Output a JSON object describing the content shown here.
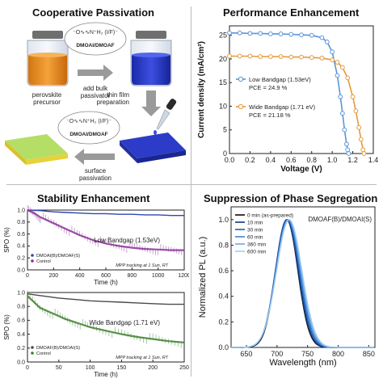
{
  "figure": {
    "panel_a": {
      "title": "Cooperative Passivation",
      "molecule_label_top": "DMOAI/DMOAF",
      "molecule_label_bottom": "DMOAI/DMOAF",
      "precursor_label_line1": "perovskite",
      "precursor_label_line2": "precursor",
      "step1_line1": "add bulk",
      "step1_line2": "passivator",
      "step2_line1": "thin film",
      "step2_line2": "preparation",
      "step3_line1": "surface",
      "step3_line2": "passivation",
      "colors": {
        "orange": "#e2891a",
        "blue": "#2a36c4",
        "green": "#a8d45a",
        "gray_arrow": "#9a9a9a"
      }
    },
    "panel_b": {
      "title": "Performance Enhancement"
    },
    "panel_c": {
      "title": "Stability Enhancement"
    },
    "panel_d": {
      "title": "Suppression of Phase Segregation"
    }
  },
  "chart_data": [
    {
      "id": "jv",
      "type": "line",
      "xlabel": "Voltage (V)",
      "ylabel": "Current density (mA/cm²)",
      "xlim": [
        0,
        1.4
      ],
      "ylim": [
        0,
        27
      ],
      "xticks": [
        "0.0",
        "0.2",
        "0.4",
        "0.6",
        "0.8",
        "1.0",
        "1.2",
        "1.4"
      ],
      "yticks": [
        "0",
        "5",
        "10",
        "15",
        "20",
        "25"
      ],
      "legend_position": "center-left",
      "series": [
        {
          "name": "Low Bandgap (1.53eV)",
          "pce": "PCE = 24.9 %",
          "color": "#5a95d8",
          "x": [
            0,
            0.1,
            0.2,
            0.3,
            0.4,
            0.5,
            0.6,
            0.7,
            0.8,
            0.9,
            0.95,
            1.0,
            1.05,
            1.08,
            1.1,
            1.12,
            1.14,
            1.15,
            1.16
          ],
          "y": [
            25.5,
            25.5,
            25.4,
            25.4,
            25.3,
            25.3,
            25.2,
            25.1,
            25.0,
            24.5,
            23.6,
            21.5,
            16.5,
            12.0,
            8.5,
            5.0,
            2.0,
            0.8,
            0
          ]
        },
        {
          "name": "Wide Bandgap (1.71 eV)",
          "pce": "PCE = 21.18 %",
          "color": "#e39a3d",
          "x": [
            0,
            0.1,
            0.2,
            0.3,
            0.4,
            0.5,
            0.6,
            0.7,
            0.8,
            0.9,
            1.0,
            1.05,
            1.1,
            1.15,
            1.2,
            1.23,
            1.26,
            1.28,
            1.3,
            1.31
          ],
          "y": [
            20.6,
            20.6,
            20.6,
            20.5,
            20.5,
            20.5,
            20.4,
            20.4,
            20.3,
            20.2,
            19.8,
            19.3,
            18.2,
            16.0,
            12.0,
            9.0,
            5.5,
            3.0,
            0.8,
            0
          ]
        }
      ]
    },
    {
      "id": "stab_low",
      "type": "line",
      "xlabel": "Time (h)",
      "ylabel": "SPO (%)",
      "xlim": [
        0,
        1200
      ],
      "ylim": [
        0,
        1.0
      ],
      "xticks": [
        "0",
        "200",
        "400",
        "600",
        "800",
        "1000",
        "1200"
      ],
      "yticks": [
        "0.0",
        "0.2",
        "0.4",
        "0.6",
        "0.8",
        "1.0"
      ],
      "annotation": "Low Bandgap (1.53eV)",
      "note": "MPP tracking at 1 Sun, RT",
      "series": [
        {
          "name": "DMOAI(B)/DMOAF(S)",
          "color": "#2d47b5",
          "x": [
            0,
            100,
            200,
            300,
            400,
            500,
            600,
            700,
            800,
            900,
            1000,
            1100,
            1200
          ],
          "y": [
            1.0,
            0.99,
            0.97,
            0.96,
            0.95,
            0.94,
            0.94,
            0.93,
            0.93,
            0.92,
            0.92,
            0.91,
            0.91
          ]
        },
        {
          "name": "Control",
          "color": "#8a2f96",
          "x": [
            0,
            50,
            100,
            200,
            300,
            400,
            500,
            600,
            700,
            800,
            900,
            1000,
            1100,
            1200
          ],
          "y": [
            1.0,
            0.95,
            0.88,
            0.78,
            0.68,
            0.58,
            0.5,
            0.44,
            0.4,
            0.37,
            0.35,
            0.34,
            0.33,
            0.33
          ]
        }
      ]
    },
    {
      "id": "stab_wide",
      "type": "line",
      "xlabel": "Time (h)",
      "ylabel": "SPO (%)",
      "xlim": [
        0,
        250
      ],
      "ylim": [
        0,
        1.0
      ],
      "xticks": [
        "0",
        "50",
        "100",
        "150",
        "200",
        "250"
      ],
      "yticks": [
        "0.0",
        "0.2",
        "0.4",
        "0.6",
        "0.8",
        "1.0"
      ],
      "annotation": "Wide Bandgap (1.71 eV)",
      "note": "MPP tracking at 1 Sun, RT",
      "series": [
        {
          "name": "DMOAF(B)/DMOAI(S)",
          "color": "#4a4a4a",
          "x": [
            0,
            25,
            50,
            75,
            100,
            125,
            150,
            175,
            200,
            225,
            250
          ],
          "y": [
            0.98,
            0.95,
            0.92,
            0.9,
            0.88,
            0.87,
            0.86,
            0.85,
            0.84,
            0.83,
            0.83
          ]
        },
        {
          "name": "Control",
          "color": "#3c7f2c",
          "x": [
            0,
            20,
            40,
            60,
            80,
            100,
            125,
            150,
            175,
            200,
            225,
            250
          ],
          "y": [
            0.95,
            0.78,
            0.7,
            0.62,
            0.56,
            0.5,
            0.45,
            0.4,
            0.36,
            0.33,
            0.3,
            0.28
          ]
        }
      ]
    },
    {
      "id": "pl",
      "type": "line",
      "xlabel": "Wavelength (nm)",
      "ylabel": "Normalized PL (a.u.)",
      "xlim": [
        625,
        860
      ],
      "ylim": [
        0,
        1.1
      ],
      "xticks": [
        "650",
        "700",
        "750",
        "800",
        "850"
      ],
      "yticks": [
        "0.0",
        "0.2",
        "0.4",
        "0.6",
        "0.8",
        "1.0"
      ],
      "annotation": "DMOAF(B)/DMOAI(S)",
      "legend_position": "top-left",
      "series": [
        {
          "name": "0 min (as-prepared)",
          "color": "#0a0a0a",
          "center": 716,
          "sigma": 18
        },
        {
          "name": "10 min",
          "color": "#10367a",
          "center": 716,
          "sigma": 18.5
        },
        {
          "name": "30 min",
          "color": "#1f5cb3",
          "center": 717,
          "sigma": 19
        },
        {
          "name": "60 min",
          "color": "#3d82d1",
          "center": 718,
          "sigma": 19.5
        },
        {
          "name": "360 min",
          "color": "#6aa9e6",
          "center": 719,
          "sigma": 20
        },
        {
          "name": "600 min",
          "color": "#9fcbf3",
          "center": 720,
          "sigma": 20.5
        }
      ]
    }
  ]
}
